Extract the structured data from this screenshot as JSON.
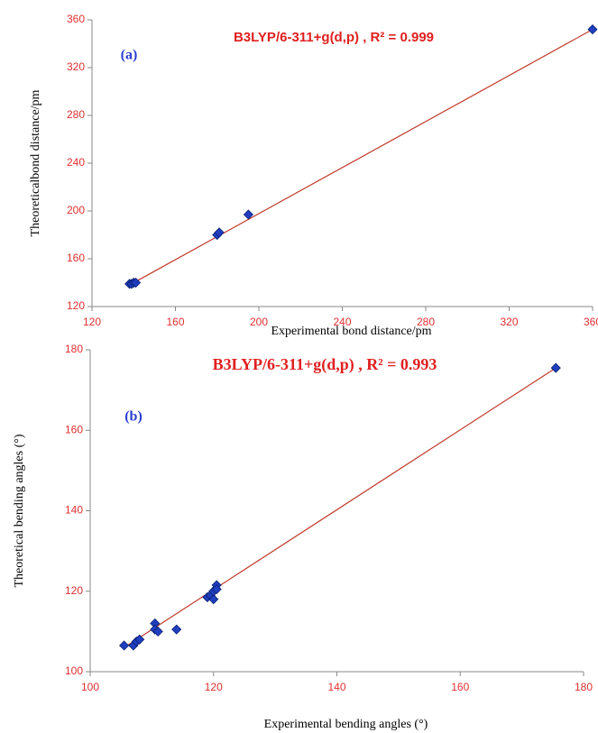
{
  "chart_data": [
    {
      "type": "scatter",
      "title": "B3LYP/6-311+g(d,p)  ,  R² = 0.999",
      "panel_label": "(a)",
      "x_label": "Experimental bond distance/pm",
      "y_label": "Theoreticalbond distance/pm",
      "x": [
        138,
        139,
        140,
        141,
        180,
        181,
        195,
        360
      ],
      "y": [
        139,
        139,
        140,
        140,
        180,
        182,
        197,
        352
      ],
      "color": "#1f3fbf",
      "line_color": "#c0392b",
      "fit_line": {
        "x": [
          139,
          360
        ],
        "y": [
          139,
          352
        ]
      },
      "xlim": [
        120,
        360
      ],
      "ylim": [
        120,
        360
      ],
      "xticks": [
        120,
        160,
        200,
        240,
        280,
        320,
        360
      ],
      "yticks": [
        120,
        160,
        200,
        240,
        280,
        320,
        360
      ]
    },
    {
      "type": "scatter",
      "title": "B3LYP/6-311+g(d,p)  ,  R² = 0.993",
      "panel_label": "(b)",
      "x_label": "Experimental bending angles (°)",
      "y_label": "Theoretical bending angles (°)",
      "x": [
        105.5,
        107,
        107.5,
        108,
        110.5,
        110.5,
        111,
        114,
        119,
        119.5,
        120,
        120,
        120.5,
        120.5,
        175.5
      ],
      "y": [
        106.5,
        106.5,
        107.5,
        108,
        112,
        110.5,
        110,
        110.5,
        118.5,
        119,
        118,
        120,
        121.5,
        120.5,
        175.5
      ],
      "color": "#1f3fbf",
      "line_color": "#c0392b",
      "fit_line": {
        "x": [
          105.5,
          175.5
        ],
        "y": [
          106,
          175.5
        ]
      },
      "xlim": [
        100,
        180
      ],
      "ylim": [
        100,
        180
      ],
      "xticks": [
        100,
        120,
        140,
        160,
        180
      ],
      "yticks": [
        100,
        120,
        140,
        160,
        180
      ]
    }
  ]
}
